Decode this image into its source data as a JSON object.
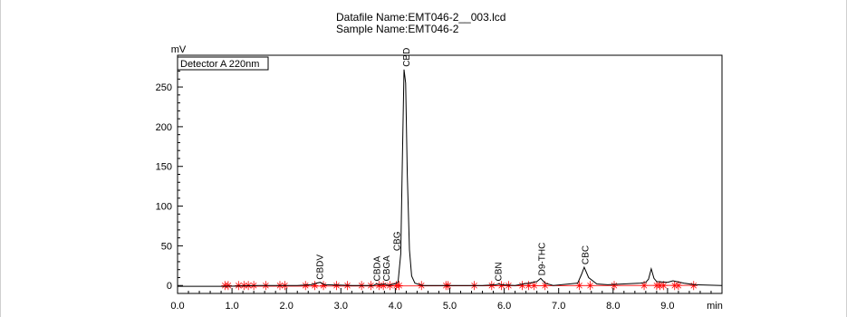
{
  "header": {
    "datafile": "Datafile Name:EMT046-2__003.lcd",
    "sample": "Sample Name:EMT046-2"
  },
  "chart_data": {
    "type": "line",
    "title": "",
    "ylabel": "mV",
    "xlabel": "min",
    "legend": "Detector A 220nm",
    "xlim": [
      0.0,
      10.0
    ],
    "ylim": [
      -10,
      290
    ],
    "x_ticks": [
      "0.0",
      "1.0",
      "2.0",
      "3.0",
      "4.0",
      "5.0",
      "6.0",
      "7.0",
      "8.0",
      "9.0"
    ],
    "y_ticks": [
      "0",
      "50",
      "100",
      "150",
      "200",
      "250"
    ],
    "grid": false,
    "series": [
      {
        "x": [
          0.0,
          0.85,
          1.5,
          2.2,
          2.45,
          2.55,
          2.62,
          2.7,
          3.2,
          3.6,
          3.65,
          3.72,
          3.8,
          3.88,
          3.92,
          3.98,
          4.05,
          4.1,
          4.13,
          4.16,
          4.19,
          4.22,
          4.26,
          4.3,
          4.36,
          4.5,
          5.0,
          5.6,
          5.85,
          5.9,
          5.95,
          6.2,
          6.35,
          6.45,
          6.6,
          6.67,
          6.75,
          6.9,
          7.35,
          7.42,
          7.47,
          7.55,
          7.7,
          7.9,
          8.2,
          8.5,
          8.6,
          8.65,
          8.7,
          8.75,
          8.8,
          9.0,
          9.1,
          9.3,
          9.5,
          10.0
        ],
        "y": [
          -1,
          -1,
          0,
          0,
          1,
          3,
          4,
          1,
          0,
          0,
          2,
          1,
          2,
          0,
          1,
          2,
          4,
          40,
          160,
          272,
          255,
          140,
          45,
          12,
          3,
          0,
          0,
          0,
          1,
          2,
          1,
          0,
          2,
          3,
          5,
          9,
          3,
          0,
          3,
          14,
          23,
          10,
          2,
          1,
          2,
          3,
          4,
          8,
          21,
          9,
          5,
          4,
          6,
          3,
          1,
          0
        ]
      }
    ],
    "peaks": [
      {
        "name": "CBDV",
        "rt": 2.6
      },
      {
        "name": "CBDA",
        "rt": 3.65
      },
      {
        "name": "CBGA",
        "rt": 3.83
      },
      {
        "name": "CBG",
        "rt": 4.02
      },
      {
        "name": "CBD",
        "rt": 4.19
      },
      {
        "name": "CBN",
        "rt": 5.88
      },
      {
        "name": "D9-THC",
        "rt": 6.68
      },
      {
        "name": "CBC",
        "rt": 7.48
      }
    ],
    "integration_marks": [
      0.87,
      0.93,
      1.12,
      1.22,
      1.3,
      1.4,
      1.62,
      1.88,
      1.97,
      2.35,
      2.52,
      2.68,
      2.92,
      3.12,
      3.38,
      3.55,
      3.7,
      3.78,
      3.9,
      4.02,
      4.07,
      4.48,
      4.93,
      4.97,
      5.45,
      5.77,
      5.95,
      6.08,
      6.33,
      6.45,
      6.55,
      6.75,
      7.38,
      7.58,
      8.02,
      8.57,
      8.8,
      8.86,
      8.93,
      9.13,
      9.2,
      9.48
    ],
    "colors": {
      "trace": "#000000",
      "marks": "#ff0000",
      "axis": "#000000"
    }
  }
}
